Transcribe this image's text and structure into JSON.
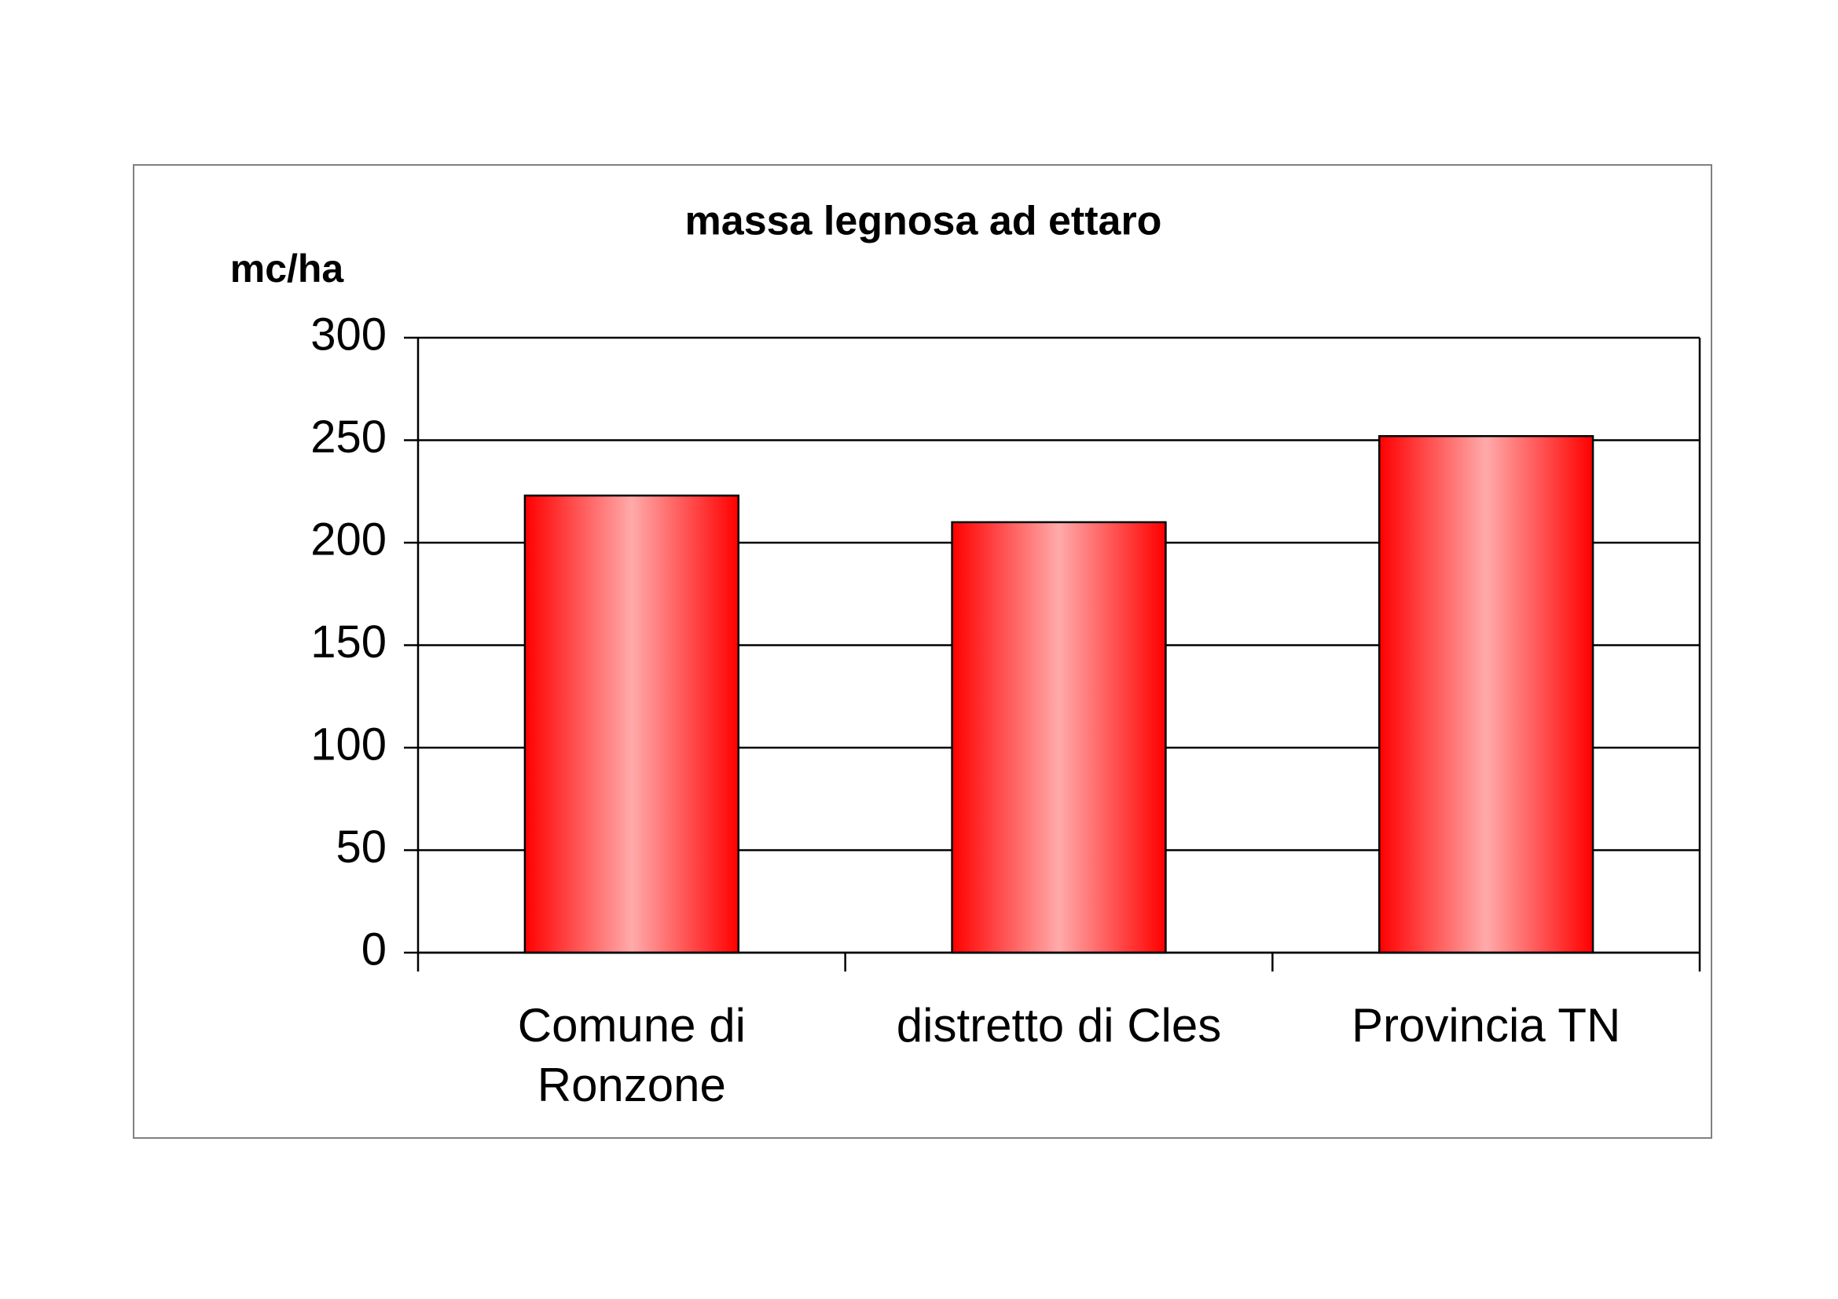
{
  "chart_data": {
    "type": "bar",
    "title": "massa legnosa ad ettaro",
    "y_label": "mc/ha",
    "categories": [
      "Comune di Ronzone",
      "distretto di Cles",
      "Provincia TN"
    ],
    "values": [
      223,
      210,
      252
    ],
    "color": "#ff0000",
    "ylim": [
      0,
      300
    ],
    "yticks": [
      0,
      50,
      100,
      150,
      200,
      250,
      300
    ],
    "grid": true
  }
}
